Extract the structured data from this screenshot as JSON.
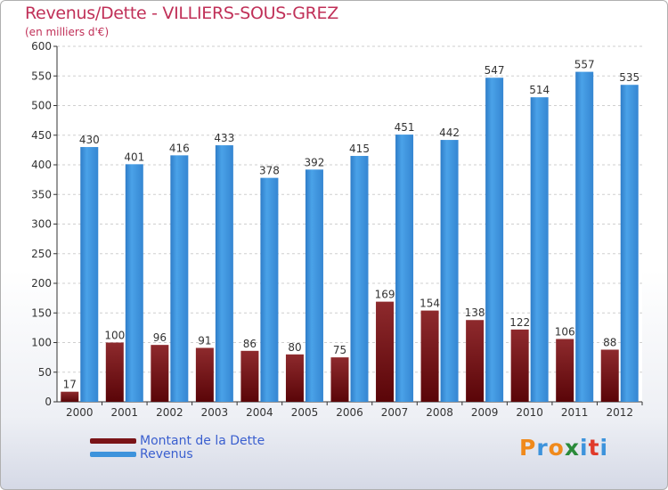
{
  "title": "Revenus/Dette - VILLIERS-SOUS-GREZ",
  "subtitle": "(en milliers d'€)",
  "chart_data": {
    "type": "bar",
    "categories": [
      "2000",
      "2001",
      "2002",
      "2003",
      "2004",
      "2005",
      "2006",
      "2007",
      "2008",
      "2009",
      "2010",
      "2011",
      "2012"
    ],
    "series": [
      {
        "name": "Montant de la Dette",
        "color": "#7a1418",
        "values": [
          17,
          100,
          96,
          91,
          86,
          80,
          75,
          169,
          154,
          138,
          122,
          106,
          88
        ]
      },
      {
        "name": "Revenus",
        "color": "#3d93dc",
        "values": [
          430,
          401,
          416,
          433,
          378,
          392,
          415,
          451,
          442,
          547,
          514,
          557,
          535
        ]
      }
    ],
    "ylim": [
      0,
      600
    ],
    "yticks": [
      0,
      50,
      100,
      150,
      200,
      250,
      300,
      350,
      400,
      450,
      500,
      550,
      600
    ],
    "grid": true
  },
  "legend": {
    "items": [
      {
        "label": "Montant de la Dette",
        "color": "#7a1418"
      },
      {
        "label": "Revenus",
        "color": "#3d93dc"
      }
    ]
  },
  "logo": {
    "letters": [
      "P",
      "r",
      "o",
      "x",
      "i",
      "t",
      "i"
    ],
    "colors": [
      "#f08a1c",
      "#3d93dc",
      "#f08a1c",
      "#2a8a3a",
      "#3d93dc",
      "#e03a2a",
      "#3d93dc"
    ]
  }
}
